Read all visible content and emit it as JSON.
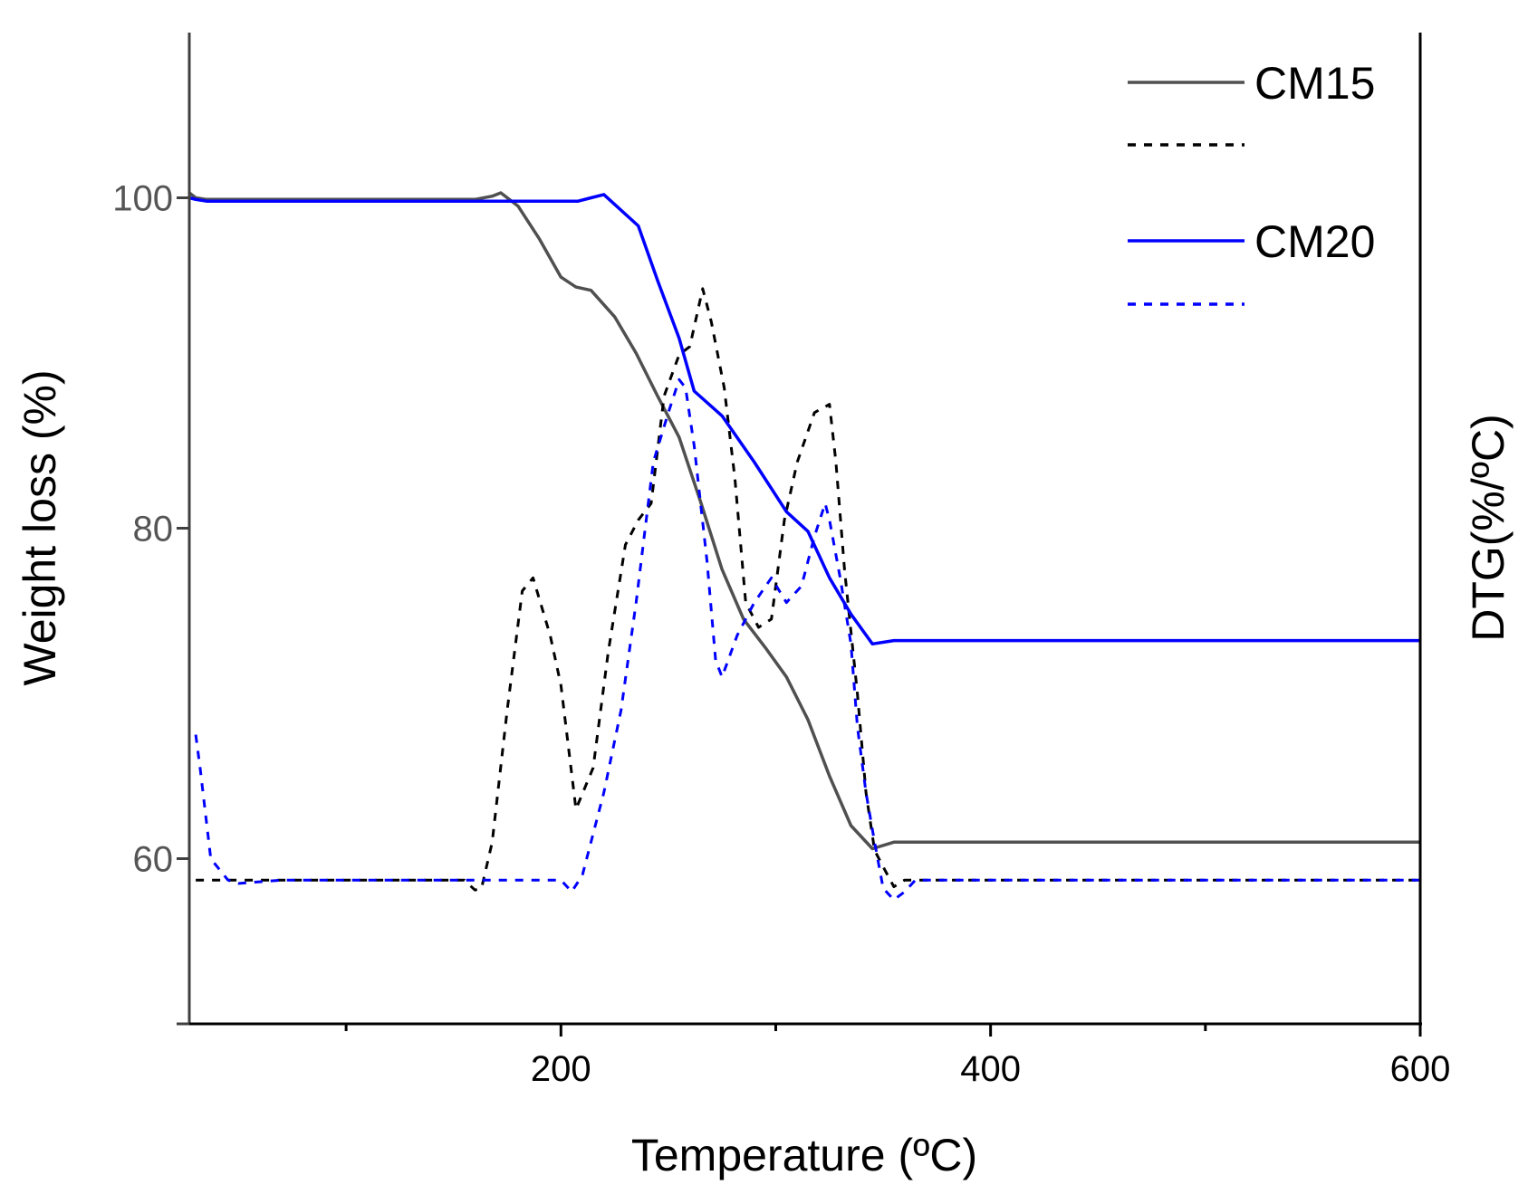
{
  "chart_data": {
    "type": "line",
    "xlabel": "Temperature (ºC)",
    "ylabel": "Weight loss (%)",
    "y2label": "DTG(%/ºC)",
    "xlim": [
      27,
      600
    ],
    "ylim": [
      50,
      110
    ],
    "xticks": [
      200,
      400,
      600
    ],
    "xminor": [
      100,
      300,
      500
    ],
    "yticks": [
      60,
      80,
      100
    ],
    "legend_position": "top-right",
    "colors": {
      "CM15": "#505050",
      "CM15_dtg": "#000000",
      "CM20": "#0000ff",
      "CM20_dtg": "#0000ff"
    },
    "series": [
      {
        "name": "CM15",
        "style": "solid",
        "x": [
          27,
          30,
          35,
          40,
          60,
          100,
          150,
          160,
          168,
          172,
          180,
          190,
          200,
          207,
          214,
          225,
          235,
          245,
          255,
          265,
          275,
          285,
          295,
          305,
          315,
          325,
          335,
          345,
          355,
          400,
          500,
          600
        ],
        "y": [
          100.3,
          100,
          99.9,
          99.9,
          99.9,
          99.9,
          99.9,
          99.9,
          100.1,
          100.3,
          99.5,
          97.5,
          95.2,
          94.6,
          94.4,
          92.8,
          90.6,
          88,
          85.5,
          81.6,
          77.5,
          74.5,
          72.8,
          71,
          68.4,
          65,
          62,
          60.6,
          61,
          61,
          61,
          61
        ]
      },
      {
        "name": "",
        "style": "dashed",
        "x": [
          30,
          60,
          100,
          140,
          155,
          160,
          163,
          168,
          175,
          182,
          187,
          195,
          200,
          207,
          215,
          222,
          230,
          236,
          242,
          248,
          255,
          260,
          266,
          270,
          276,
          281,
          286,
          292,
          298,
          304,
          310,
          318,
          325,
          328,
          332,
          338,
          342,
          346,
          350,
          355,
          360,
          400,
          500,
          600
        ],
        "y": [
          58.7,
          58.7,
          58.7,
          58.7,
          58.7,
          58.1,
          58.2,
          61,
          69,
          76.2,
          77,
          73.5,
          70.5,
          63,
          65.5,
          72.5,
          79,
          80.5,
          81.5,
          88,
          90.5,
          91,
          94.5,
          92.5,
          88.5,
          83,
          75.5,
          74,
          74.5,
          80.5,
          84,
          87,
          87.5,
          84,
          77.5,
          70,
          64,
          60.5,
          59.5,
          58.3,
          58.7,
          58.7,
          58.7,
          58.7
        ]
      },
      {
        "name": "CM20",
        "style": "solid",
        "x": [
          27,
          30,
          35,
          40,
          60,
          100,
          150,
          190,
          200,
          208,
          214,
          220,
          236,
          245,
          255,
          262,
          275,
          290,
          305,
          315,
          325,
          335,
          345,
          355,
          400,
          500,
          600
        ],
        "y": [
          100,
          99.9,
          99.8,
          99.8,
          99.8,
          99.8,
          99.8,
          99.8,
          99.8,
          99.8,
          100,
          100.2,
          98.3,
          95,
          91.5,
          88.3,
          86.8,
          84,
          81,
          79.8,
          77,
          74.8,
          73,
          73.2,
          73.2,
          73.2,
          73.2
        ]
      },
      {
        "name": "",
        "style": "dashed",
        "x": [
          30,
          32,
          37,
          45,
          50,
          70,
          110,
          150,
          190,
          200,
          205,
          210,
          220,
          228,
          235,
          243,
          250,
          255,
          258,
          262,
          268,
          272,
          275,
          282,
          290,
          298,
          305,
          312,
          318,
          323,
          325,
          330,
          335,
          338,
          342,
          346,
          350,
          355,
          360,
          365,
          370,
          400,
          500,
          600
        ],
        "y": [
          67.5,
          65.5,
          60,
          58.7,
          58.5,
          58.7,
          58.7,
          58.7,
          58.7,
          58.7,
          58,
          59,
          64,
          69,
          75.5,
          84,
          87,
          89,
          88.5,
          85,
          78,
          72,
          71,
          73.5,
          75.5,
          77,
          75.5,
          76.5,
          79.5,
          81.5,
          80.5,
          77,
          73,
          68,
          64,
          61,
          58.2,
          57.5,
          58,
          58.7,
          58.7,
          58.7,
          58.7,
          58.7
        ]
      }
    ],
    "legend": [
      {
        "label": "CM15",
        "series": 0
      },
      {
        "label": "",
        "series": 1
      },
      {
        "label": "CM20",
        "series": 2
      },
      {
        "label": "",
        "series": 3
      }
    ]
  }
}
